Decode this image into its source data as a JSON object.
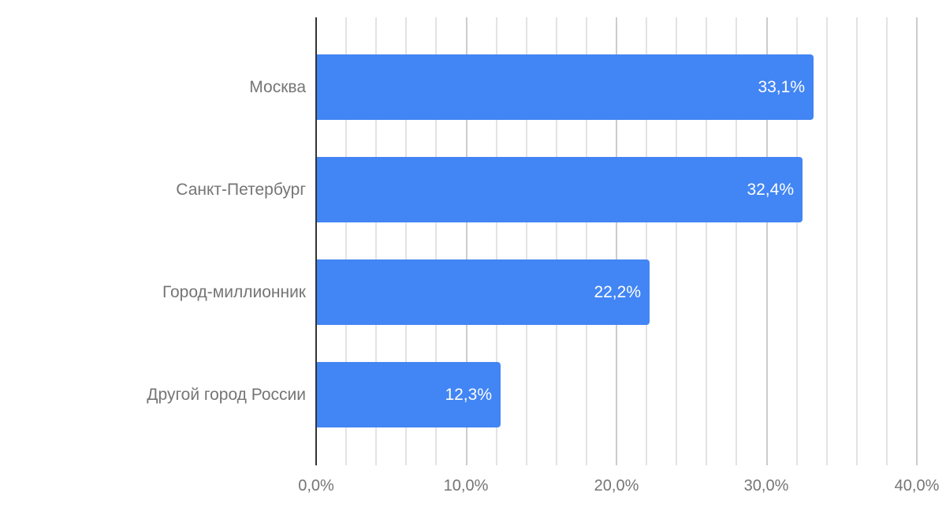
{
  "chart_data": {
    "type": "bar",
    "orientation": "horizontal",
    "title": "",
    "xlabel": "",
    "ylabel": "",
    "categories": [
      "Москва",
      "Санкт-Петербург",
      "Город-миллионник",
      "Другой город России"
    ],
    "values": [
      33.1,
      32.4,
      22.2,
      12.3
    ],
    "value_labels": [
      "33,1%",
      "32,4%",
      "22,2%",
      "12,3%"
    ],
    "xlim": [
      0,
      40
    ],
    "x_ticks": [
      0,
      10,
      20,
      30,
      40
    ],
    "x_tick_labels": [
      "0,0%",
      "10,0%",
      "20,0%",
      "30,0%",
      "40,0%"
    ],
    "grid": {
      "vertical": true,
      "major_step": 10,
      "minor_step": 2
    },
    "legend": null,
    "bar_color": "#4285f4"
  },
  "labels": {
    "categories": [
      "Москва",
      "Санкт-Петербург",
      "Город-миллионник",
      "Другой город России"
    ],
    "values": [
      "33,1%",
      "32,4%",
      "22,2%",
      "12,3%"
    ],
    "ticks": [
      "0,0%",
      "10,0%",
      "20,0%",
      "30,0%",
      "40,0%"
    ]
  }
}
